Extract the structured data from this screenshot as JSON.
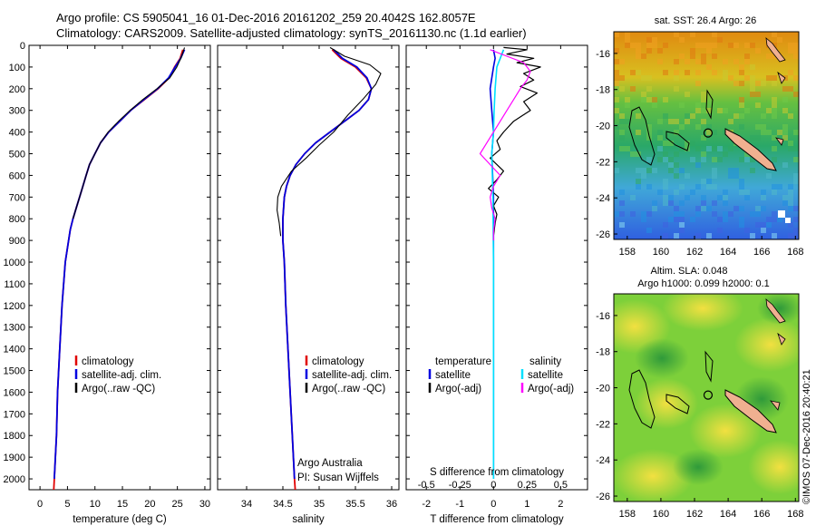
{
  "header": {
    "line1": "Argo profile: CS 5905041_16 01-Dec-2016 20161202_259 20.4042S 162.8057E",
    "line2": "Climatology: CARS2009. Satellite-adjusted climatology: synTS_20161130.nc (1.1d earlier)"
  },
  "side_stamp": "©IMOS 07-Dec-2016 20:40:21",
  "colors": {
    "climatology": "#e00000",
    "satellite": "#0000e0",
    "argo": "#000000",
    "sat_salinity": "#00e0ff",
    "argo_adj_salinity": "#ff00ff",
    "land": "#f0b090"
  },
  "chart_data": [
    {
      "type": "line",
      "name_id": "temperature-profile",
      "xlabel": "temperature (deg C)",
      "xlim": [
        -2,
        31
      ],
      "xticks": [
        0,
        5,
        10,
        15,
        20,
        25,
        30
      ],
      "ylim": [
        2050,
        0
      ],
      "yticks": [
        0,
        100,
        200,
        300,
        400,
        500,
        600,
        700,
        800,
        900,
        1000,
        1100,
        1200,
        1300,
        1400,
        1500,
        1600,
        1700,
        1800,
        1900,
        2000
      ],
      "legend": [
        "climatology",
        "satellite-adj. clim.",
        "Argo(..raw -QC)"
      ],
      "series": [
        {
          "name": "climatology",
          "color": "#e00000",
          "width": 1.8,
          "x": [
            26,
            25.5,
            24.5,
            23.5,
            21.5,
            19,
            16.5,
            14.5,
            12.5,
            11,
            10,
            9,
            8.4,
            7.8,
            7.2,
            6.6,
            6,
            5.5,
            4.6,
            4,
            3.6,
            3.2,
            3,
            2.8,
            2.6,
            2.5
          ],
          "y": [
            20,
            60,
            100,
            150,
            200,
            250,
            300,
            350,
            400,
            450,
            500,
            550,
            600,
            650,
            700,
            750,
            800,
            850,
            1000,
            1200,
            1400,
            1600,
            1800,
            1900,
            2000,
            2050
          ]
        },
        {
          "name": "satellite-adj. clim.",
          "color": "#0000e0",
          "width": 1.8,
          "x": [
            26.3,
            25.6,
            24.6,
            23.4,
            21.4,
            18.9,
            16.5,
            14.5,
            12.5,
            11,
            10,
            9,
            8.4,
            7.8,
            7.2,
            6.6,
            6,
            5.5,
            4.6,
            4,
            3.6,
            3.2,
            3,
            2.8,
            2.6
          ],
          "y": [
            20,
            60,
            100,
            150,
            200,
            250,
            300,
            350,
            400,
            450,
            500,
            550,
            600,
            650,
            700,
            750,
            800,
            850,
            1000,
            1200,
            1400,
            1600,
            1800,
            1900,
            2000
          ]
        },
        {
          "name": "Argo(..raw -QC)",
          "color": "#000000",
          "width": 1.1,
          "x": [
            26.3,
            25.8,
            24.9,
            23.6,
            21.3,
            18.7,
            16.4,
            14.3,
            12.4,
            11,
            10,
            9,
            8.4,
            7.8,
            7.2,
            6.6,
            6
          ],
          "y": [
            10,
            50,
            100,
            150,
            200,
            250,
            300,
            350,
            400,
            450,
            500,
            550,
            600,
            650,
            700,
            750,
            800
          ]
        }
      ]
    },
    {
      "type": "line",
      "name_id": "salinity-profile",
      "xlabel": "salinity",
      "xlim": [
        33.6,
        36.1
      ],
      "xticks": [
        34,
        34.5,
        35,
        35.5,
        36
      ],
      "ylim": [
        2050,
        0
      ],
      "legend": [
        "climatology",
        "satellite-adj. clim.",
        "Argo(..raw -QC)"
      ],
      "notes": [
        "Argo Australia",
        "PI: Susan Wijffels"
      ],
      "series": [
        {
          "name": "climatology",
          "color": "#e00000",
          "width": 1.8,
          "x": [
            35.18,
            35.3,
            35.5,
            35.65,
            35.72,
            35.68,
            35.55,
            35.35,
            35.15,
            34.95,
            34.8,
            34.68,
            34.6,
            34.55,
            34.52,
            34.5,
            34.5,
            34.52,
            34.54,
            34.57,
            34.6,
            34.63,
            34.66,
            34.67
          ],
          "y": [
            20,
            60,
            100,
            150,
            200,
            250,
            300,
            350,
            400,
            450,
            500,
            550,
            600,
            650,
            700,
            800,
            900,
            1000,
            1200,
            1400,
            1600,
            1800,
            2000,
            2050
          ]
        },
        {
          "name": "satellite-adj. clim.",
          "color": "#0000e0",
          "width": 1.8,
          "x": [
            35.2,
            35.32,
            35.52,
            35.66,
            35.72,
            35.68,
            35.55,
            35.35,
            35.15,
            34.95,
            34.8,
            34.68,
            34.6,
            34.55,
            34.52,
            34.5,
            34.5,
            34.52,
            34.54,
            34.57,
            34.6,
            34.63,
            34.66
          ],
          "y": [
            20,
            60,
            100,
            150,
            200,
            250,
            300,
            350,
            400,
            450,
            500,
            550,
            600,
            650,
            700,
            800,
            900,
            1000,
            1200,
            1400,
            1600,
            1800,
            2000
          ]
        },
        {
          "name": "Argo(..raw -QC)",
          "color": "#000000",
          "width": 1.1,
          "x": [
            35.15,
            35.35,
            35.7,
            35.85,
            35.78,
            35.6,
            35.4,
            35.2,
            35,
            34.82,
            34.62,
            34.48,
            34.43,
            34.42,
            34.45,
            34.47
          ],
          "y": [
            10,
            50,
            90,
            130,
            180,
            250,
            320,
            400,
            460,
            520,
            580,
            650,
            700,
            760,
            820,
            880
          ]
        }
      ]
    },
    {
      "type": "line",
      "name_id": "difference-profile",
      "xlabel": "T difference from climatology",
      "xlabel_top": "S difference from climatology",
      "xlim": [
        -2.6,
        2.8
      ],
      "xticks": [
        -2,
        -1,
        0,
        1,
        2
      ],
      "xticks_top": [
        "-0.5",
        "-0.25",
        "0",
        "0.25",
        "0.5"
      ],
      "ylim": [
        2050,
        0
      ],
      "legend_temperature": "temperature",
      "legend_salinity": "salinity",
      "legend": [
        "satellite",
        "Argo(-adj)",
        "satellite",
        "Argo(-adj)"
      ],
      "series": [
        {
          "name": "temperature satellite",
          "color": "#0000e0",
          "width": 1.6,
          "x": [
            0,
            0.05,
            0,
            -0.1,
            -0.05,
            0,
            -0.05,
            0,
            0,
            0,
            0
          ],
          "y": [
            20,
            60,
            100,
            200,
            300,
            400,
            500,
            700,
            1000,
            1500,
            2000
          ]
        },
        {
          "name": "temperature Argo(-adj)",
          "color": "#000000",
          "width": 1.2,
          "x": [
            0.3,
            1.0,
            0.4,
            1.2,
            0.7,
            1.4,
            0.9,
            1.2,
            0.8,
            1.3,
            0.9,
            1.1,
            0.6,
            0.3,
            0.1,
            0.2,
            -0.1,
            0.3,
            0.1,
            -0.15,
            0.15,
            0,
            0.1,
            0.05,
            0
          ],
          "y": [
            10,
            20,
            40,
            60,
            80,
            100,
            130,
            160,
            190,
            220,
            260,
            300,
            350,
            400,
            440,
            480,
            520,
            580,
            620,
            660,
            700,
            740,
            780,
            820,
            880
          ]
        },
        {
          "name": "salinity satellite",
          "color": "#00e0ff",
          "width": 1.6,
          "x": [
            0.3,
            0.2,
            0.1,
            0.05,
            0.02,
            0,
            -0.05,
            -0.02,
            0,
            0,
            0
          ],
          "y": [
            20,
            60,
            100,
            200,
            300,
            400,
            500,
            700,
            1000,
            1500,
            2000
          ]
        },
        {
          "name": "salinity Argo(-adj)",
          "color": "#ff00ff",
          "width": 1.2,
          "x": [
            -0.1,
            0.4,
            0.9,
            1.1,
            1.0,
            0.8,
            0.6,
            0.4,
            0.2,
            -0.2,
            -0.4,
            -0.1,
            0.2,
            0.0,
            -0.1,
            -0.05,
            0.05,
            0,
            0
          ],
          "y": [
            20,
            50,
            80,
            120,
            160,
            200,
            250,
            300,
            350,
            450,
            500,
            550,
            600,
            650,
            700,
            750,
            800,
            860,
            900
          ]
        }
      ]
    },
    {
      "type": "heatmap",
      "name_id": "sst-map",
      "title": "sat. SST: 26.4  Argo: 26",
      "xlim": [
        157.2,
        168.2
      ],
      "ylim": [
        -26.3,
        -14.8
      ],
      "xticks": [
        158,
        160,
        162,
        164,
        166,
        168
      ],
      "yticks": [
        -16,
        -18,
        -20,
        -22,
        -24,
        -26
      ],
      "argo_position": {
        "lon": 162.8057,
        "lat": -20.4042
      }
    },
    {
      "type": "heatmap",
      "name_id": "sla-map",
      "title": "Altim. SLA: 0.048",
      "subtitle": "Argo h1000: 0.099 h2000: 0.1",
      "xlim": [
        157.2,
        168.2
      ],
      "ylim": [
        -26.3,
        -14.8
      ],
      "xticks": [
        158,
        160,
        162,
        164,
        166,
        168
      ],
      "yticks": [
        -16,
        -18,
        -20,
        -22,
        -24,
        -26
      ],
      "argo_position": {
        "lon": 162.8057,
        "lat": -20.4042
      }
    }
  ]
}
